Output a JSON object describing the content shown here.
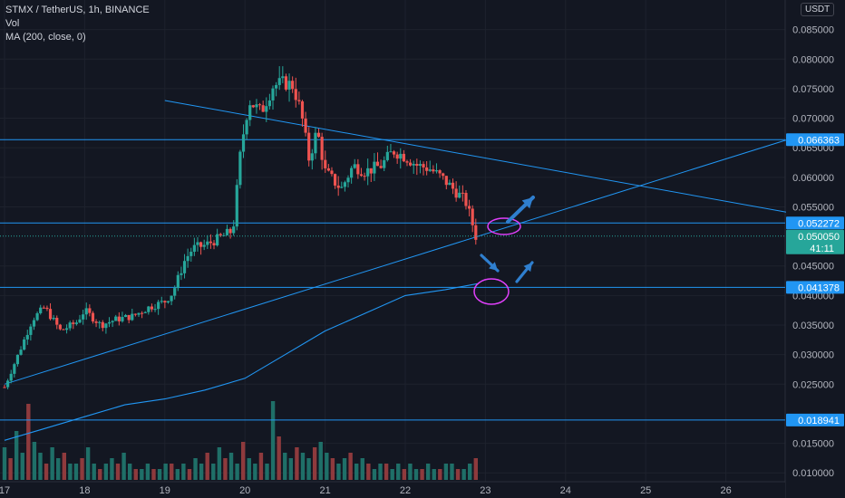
{
  "header": {
    "symbol_line": "STMX / TetherUS, 1h, BINANCE",
    "volume_label": "Vol",
    "ma_label": "MA (200, close, 0)"
  },
  "price_unit": "USDT",
  "colors": {
    "background": "#131722",
    "grid": "#1e222d",
    "up": "#26a69a",
    "down": "#ef5350",
    "up_volume": "#1f6f68",
    "down_volume": "#8e3a3d",
    "line": "#2196f3",
    "annotation": "#e040fb",
    "arrow": "#2f7fcf",
    "axis_text": "#b2b5be",
    "current_price_bg": "#26a69a"
  },
  "chart_data": {
    "type": "candlestick",
    "y_axis": {
      "min": 0.0085,
      "max": 0.09,
      "ticks": [
        0.085,
        0.08,
        0.075,
        0.07,
        0.065,
        0.06,
        0.055,
        0.045,
        0.04,
        0.035,
        0.03,
        0.025,
        0.015,
        0.01
      ],
      "tick_labels": [
        "0.085000",
        "0.080000",
        "0.075000",
        "0.070000",
        "0.065000",
        "0.060000",
        "0.055000",
        "0.045000",
        "0.040000",
        "0.035000",
        "0.030000",
        "0.025000",
        "0.015000",
        "0.010000"
      ]
    },
    "x_axis": {
      "start_label": "17",
      "end_label": "26",
      "tick_labels": [
        "17",
        "18",
        "19",
        "20",
        "21",
        "22",
        "23",
        "24",
        "25",
        "26"
      ]
    },
    "horizontal_levels": [
      {
        "value": 0.066363,
        "label": "0.066363"
      },
      {
        "value": 0.052272,
        "label": "0.052272"
      },
      {
        "value": 0.041378,
        "label": "0.041378"
      },
      {
        "value": 0.018941,
        "label": "0.018941"
      }
    ],
    "current_price": {
      "value": 0.05005,
      "label": "0.050050",
      "countdown": "41:11"
    },
    "price_path": [
      {
        "x": 17.0,
        "y": 0.0245
      },
      {
        "x": 17.2,
        "y": 0.031
      },
      {
        "x": 17.35,
        "y": 0.036
      },
      {
        "x": 17.5,
        "y": 0.038
      },
      {
        "x": 17.7,
        "y": 0.034
      },
      {
        "x": 17.9,
        "y": 0.0355
      },
      {
        "x": 18.0,
        "y": 0.0375
      },
      {
        "x": 18.2,
        "y": 0.035
      },
      {
        "x": 18.4,
        "y": 0.036
      },
      {
        "x": 18.6,
        "y": 0.0365
      },
      {
        "x": 18.8,
        "y": 0.038
      },
      {
        "x": 19.0,
        "y": 0.039
      },
      {
        "x": 19.1,
        "y": 0.0405
      },
      {
        "x": 19.25,
        "y": 0.046
      },
      {
        "x": 19.35,
        "y": 0.048
      },
      {
        "x": 19.5,
        "y": 0.0485
      },
      {
        "x": 19.65,
        "y": 0.0495
      },
      {
        "x": 19.85,
        "y": 0.051
      },
      {
        "x": 19.95,
        "y": 0.065
      },
      {
        "x": 20.05,
        "y": 0.073
      },
      {
        "x": 20.2,
        "y": 0.071
      },
      {
        "x": 20.35,
        "y": 0.0755
      },
      {
        "x": 20.5,
        "y": 0.076
      },
      {
        "x": 20.6,
        "y": 0.0755
      },
      {
        "x": 20.7,
        "y": 0.071
      },
      {
        "x": 20.8,
        "y": 0.063
      },
      {
        "x": 20.9,
        "y": 0.068
      },
      {
        "x": 21.0,
        "y": 0.061
      },
      {
        "x": 21.2,
        "y": 0.058
      },
      {
        "x": 21.35,
        "y": 0.062
      },
      {
        "x": 21.5,
        "y": 0.061
      },
      {
        "x": 21.7,
        "y": 0.062
      },
      {
        "x": 21.85,
        "y": 0.0645
      },
      {
        "x": 22.0,
        "y": 0.0635
      },
      {
        "x": 22.15,
        "y": 0.062
      },
      {
        "x": 22.3,
        "y": 0.0615
      },
      {
        "x": 22.45,
        "y": 0.06
      },
      {
        "x": 22.6,
        "y": 0.058
      },
      {
        "x": 22.75,
        "y": 0.056
      },
      {
        "x": 22.82,
        "y": 0.053
      },
      {
        "x": 22.88,
        "y": 0.05
      }
    ],
    "ma200": [
      {
        "x": 17.0,
        "y": 0.0155
      },
      {
        "x": 17.5,
        "y": 0.0175
      },
      {
        "x": 18.0,
        "y": 0.0195
      },
      {
        "x": 18.5,
        "y": 0.0215
      },
      {
        "x": 19.0,
        "y": 0.0225
      },
      {
        "x": 19.5,
        "y": 0.024
      },
      {
        "x": 20.0,
        "y": 0.026
      },
      {
        "x": 20.5,
        "y": 0.03
      },
      {
        "x": 21.0,
        "y": 0.034
      },
      {
        "x": 21.5,
        "y": 0.037
      },
      {
        "x": 22.0,
        "y": 0.04
      },
      {
        "x": 22.5,
        "y": 0.041
      },
      {
        "x": 22.9,
        "y": 0.042
      }
    ],
    "trendlines": [
      {
        "from": {
          "x": 19.0,
          "y": 0.073
        },
        "to": {
          "x": 26.8,
          "y": 0.054
        }
      },
      {
        "from": {
          "x": 17.0,
          "y": 0.025
        },
        "to": {
          "x": 26.8,
          "y": 0.0665
        }
      }
    ],
    "volume": [
      0.6,
      0.4,
      0.9,
      0.5,
      1.4,
      0.7,
      0.5,
      0.3,
      0.6,
      0.4,
      0.5,
      0.3,
      0.3,
      0.4,
      0.6,
      0.3,
      0.2,
      0.3,
      0.4,
      0.3,
      0.5,
      0.3,
      0.2,
      0.2,
      0.3,
      0.2,
      0.2,
      0.3,
      0.3,
      0.2,
      0.3,
      0.2,
      0.4,
      0.3,
      0.5,
      0.3,
      0.6,
      0.4,
      0.5,
      0.3,
      0.7,
      0.4,
      0.3,
      0.5,
      0.3,
      1.45,
      0.8,
      0.5,
      0.4,
      0.6,
      0.5,
      0.4,
      0.6,
      0.7,
      0.5,
      0.4,
      0.3,
      0.4,
      0.5,
      0.3,
      0.4,
      0.3,
      0.2,
      0.3,
      0.3,
      0.2,
      0.3,
      0.2,
      0.3,
      0.2,
      0.2,
      0.3,
      0.2,
      0.2,
      0.3,
      0.3,
      0.2,
      0.2,
      0.3,
      0.4
    ]
  }
}
